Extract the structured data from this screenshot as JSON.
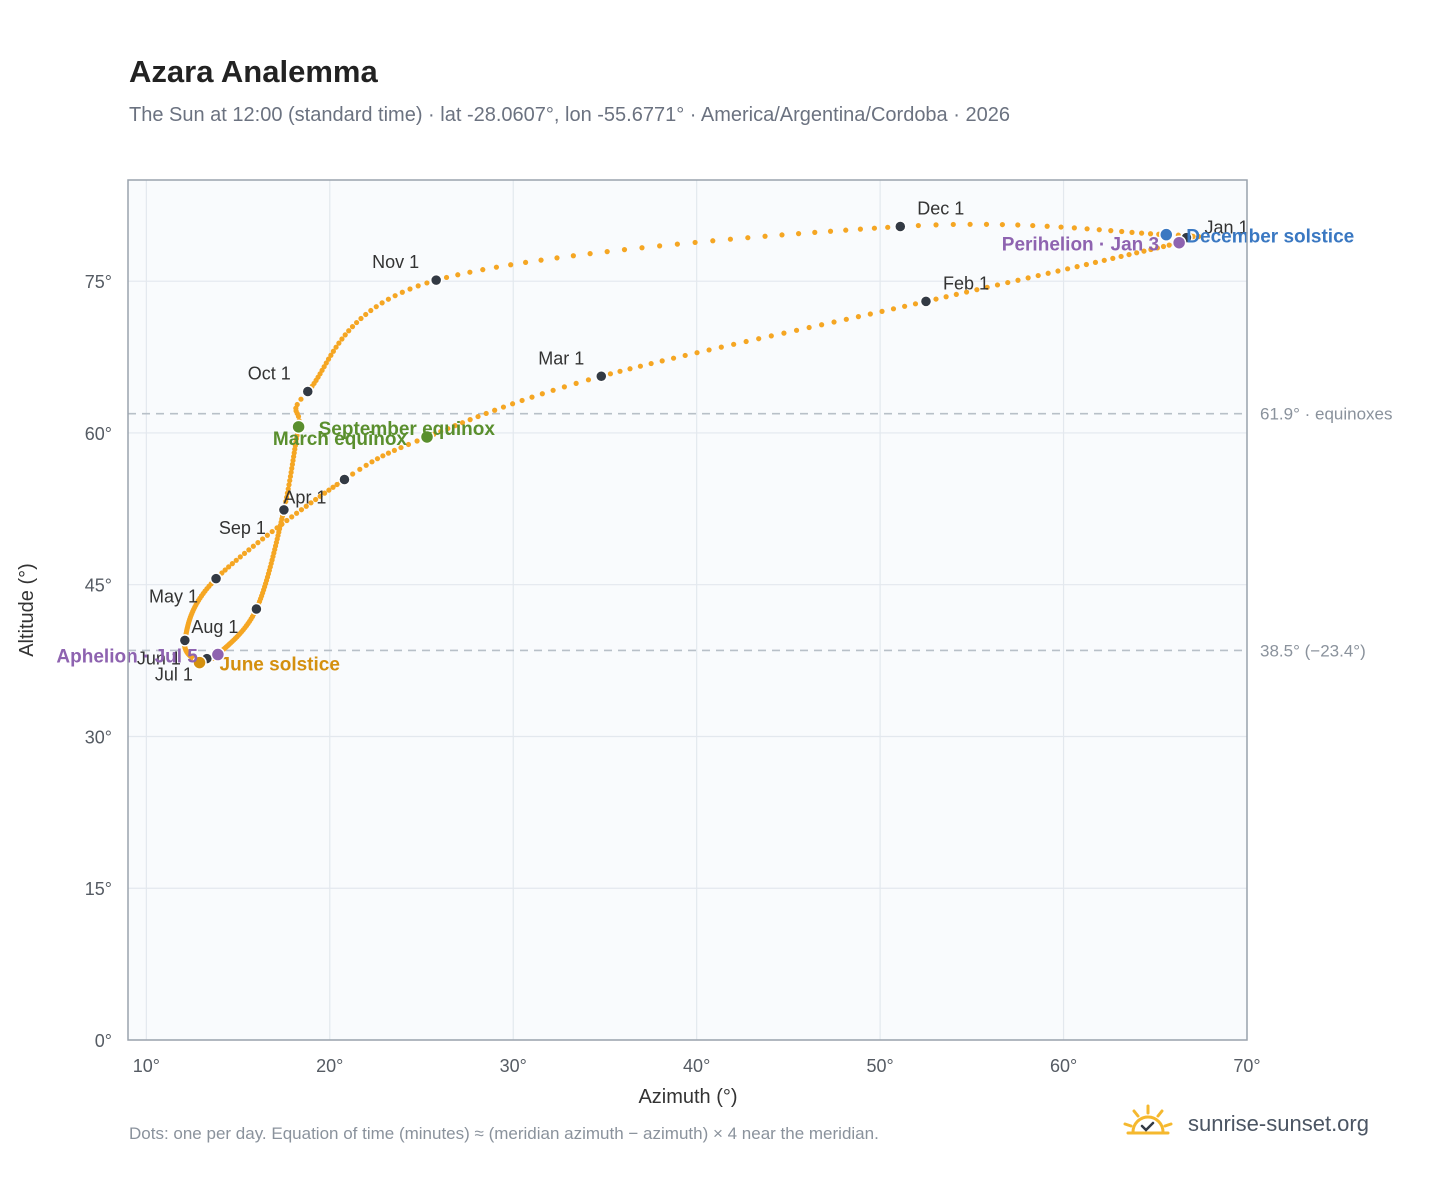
{
  "page": {
    "title": "Azara Analemma",
    "subtitle": "The Sun at 12:00 (standard time) · lat -28.0607°, lon -55.6771° · America/Argentina/Cordoba · 2026",
    "footnote": "Dots: one per day. Equation of time (minutes) ≈ (meridian azimuth − azimuth) × 4 near the meridian.",
    "brand": "sunrise-sunset.org",
    "brand_icon": "sun-icon"
  },
  "chart_data": {
    "type": "scatter",
    "xlabel": "Azimuth (°)",
    "ylabel": "Altitude (°)",
    "xlim": [
      9,
      70
    ],
    "ylim": [
      0,
      85
    ],
    "x_ticks": [
      10,
      20,
      30,
      40,
      50,
      60,
      70
    ],
    "y_ticks": [
      0,
      15,
      30,
      45,
      60,
      75
    ],
    "x_tick_labels": [
      "10°",
      "20°",
      "30°",
      "40°",
      "50°",
      "60°",
      "70°"
    ],
    "y_tick_labels": [
      "0°",
      "15°",
      "30°",
      "45°",
      "60°",
      "75°"
    ],
    "grid": true,
    "colors": {
      "path": "#f5a623",
      "month_marker": "#333a44",
      "equinox": "#5a8f2e",
      "june_solstice": "#d4900f",
      "december_solstice": "#3a78c2",
      "apsis": "#8e63b0",
      "reference_line": "#b8c0c8",
      "plot_bg": "#f9fbfd",
      "frame": "#9aa3ad",
      "grid": "#e3e8ee"
    },
    "reference_lines": [
      {
        "y": 61.9,
        "label": "61.9° · equinoxes"
      },
      {
        "y": 38.5,
        "label": "38.5° (−23.4°)"
      }
    ],
    "anchors": [
      {
        "date": "01-01",
        "x": 66.7,
        "y": 79.3
      },
      {
        "date": "01-03",
        "x": 66.3,
        "y": 78.8
      },
      {
        "date": "02-01",
        "x": 52.5,
        "y": 73.0
      },
      {
        "date": "03-01",
        "x": 34.8,
        "y": 65.6
      },
      {
        "date": "03-20",
        "x": 25.3,
        "y": 59.6
      },
      {
        "date": "04-01",
        "x": 20.8,
        "y": 55.4
      },
      {
        "date": "05-01",
        "x": 13.8,
        "y": 45.6
      },
      {
        "date": "06-01",
        "x": 12.1,
        "y": 39.5
      },
      {
        "date": "06-21",
        "x": 12.9,
        "y": 37.3
      },
      {
        "date": "07-01",
        "x": 13.3,
        "y": 37.7
      },
      {
        "date": "07-05",
        "x": 13.9,
        "y": 38.1
      },
      {
        "date": "08-01",
        "x": 16.0,
        "y": 42.6
      },
      {
        "date": "09-01",
        "x": 17.5,
        "y": 52.4
      },
      {
        "date": "09-23",
        "x": 18.3,
        "y": 60.6
      },
      {
        "date": "10-01",
        "x": 18.8,
        "y": 64.1
      },
      {
        "date": "11-01",
        "x": 25.8,
        "y": 75.1
      },
      {
        "date": "12-01",
        "x": 51.1,
        "y": 80.4
      },
      {
        "date": "12-21",
        "x": 65.6,
        "y": 79.6
      },
      {
        "date": "12-31",
        "x": 66.7,
        "y": 79.3
      }
    ],
    "month_markers": [
      {
        "label": "Jan 1",
        "x": 66.7,
        "y": 79.3,
        "anchor": "start",
        "dx": 18,
        "dy": -4
      },
      {
        "label": "Feb 1",
        "x": 52.5,
        "y": 73.0,
        "anchor": "start",
        "dx": 17,
        "dy": -12
      },
      {
        "label": "Mar 1",
        "x": 34.8,
        "y": 65.6,
        "anchor": "end",
        "dx": -17,
        "dy": -12
      },
      {
        "label": "Apr 1",
        "x": 20.8,
        "y": 55.4,
        "anchor": "end",
        "dx": -18,
        "dy": 24
      },
      {
        "label": "May 1",
        "x": 13.8,
        "y": 45.6,
        "anchor": "end",
        "dx": -18,
        "dy": 24
      },
      {
        "label": "Jun 1",
        "x": 12.1,
        "y": 39.5,
        "anchor": "end",
        "dx": -4,
        "dy": 24
      },
      {
        "label": "Jul 1",
        "x": 13.3,
        "y": 37.7,
        "anchor": "end",
        "dx": -14,
        "dy": 22
      },
      {
        "label": "Aug 1",
        "x": 16.0,
        "y": 42.6,
        "anchor": "end",
        "dx": -18,
        "dy": 24
      },
      {
        "label": "Sep 1",
        "x": 17.5,
        "y": 52.4,
        "anchor": "end",
        "dx": -18,
        "dy": 24
      },
      {
        "label": "Oct 1",
        "x": 18.8,
        "y": 64.1,
        "anchor": "end",
        "dx": -17,
        "dy": -12
      },
      {
        "label": "Nov 1",
        "x": 25.8,
        "y": 75.1,
        "anchor": "end",
        "dx": -17,
        "dy": -12
      },
      {
        "label": "Dec 1",
        "x": 51.1,
        "y": 80.4,
        "anchor": "start",
        "dx": 17,
        "dy": -12
      }
    ],
    "events": [
      {
        "label": "March equinox",
        "x": 25.3,
        "y": 59.6,
        "color_key": "equinox",
        "anchor": "end",
        "dx": -20,
        "dy": 8
      },
      {
        "label": "September equinox",
        "x": 18.3,
        "y": 60.6,
        "color_key": "equinox",
        "anchor": "start",
        "dx": 20,
        "dy": 8
      },
      {
        "label": "June solstice",
        "x": 12.9,
        "y": 37.3,
        "color_key": "june_solstice",
        "anchor": "start",
        "dx": 20,
        "dy": 8
      },
      {
        "label": "December solstice",
        "x": 65.6,
        "y": 79.6,
        "color_key": "december_solstice",
        "anchor": "start",
        "dx": 20,
        "dy": 8
      },
      {
        "label": "Perihelion · Jan 3",
        "x": 66.3,
        "y": 78.8,
        "color_key": "apsis",
        "anchor": "end",
        "dx": -20,
        "dy": 8
      },
      {
        "label": "Aphelion · Jul 5",
        "x": 13.9,
        "y": 38.1,
        "color_key": "apsis",
        "anchor": "end",
        "dx": -20,
        "dy": 8
      }
    ]
  }
}
